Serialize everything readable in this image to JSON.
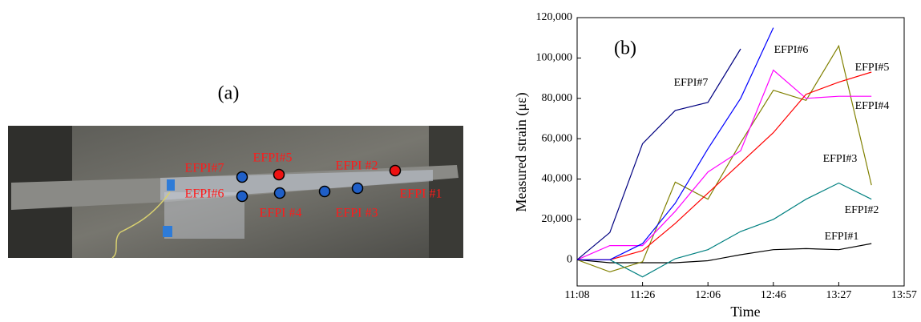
{
  "photo": {
    "label": "(a)",
    "sensors": [
      "EFPI#7",
      "EFPI#5",
      "EFPI #2",
      "EFPI#6",
      "EFPI #4",
      "EFPI #3",
      "EFPI #1"
    ]
  },
  "chart_data": {
    "type": "line",
    "title": "(b)",
    "x_label": "Time",
    "y_label": "Measured strain (με)",
    "categories": [
      "11:08",
      null,
      "11:26",
      null,
      "12:06",
      null,
      "12:46",
      null,
      "13:27",
      null,
      "13:57"
    ],
    "ylim": [
      -13000,
      120000
    ],
    "yticks": [
      0,
      {
        "value": 20000,
        "label": "20,000"
      },
      {
        "value": 40000,
        "label": "40,000"
      },
      {
        "value": 60000,
        "label": "60,000"
      },
      {
        "value": 80000,
        "label": "80,000"
      },
      {
        "value": 100000,
        "label": "100,000"
      },
      {
        "value": 120000,
        "label": "120,000"
      }
    ],
    "grid": false,
    "series": [
      {
        "name": "EFPI#1",
        "color": "#000000",
        "values": [
          0,
          -1500,
          -1500,
          -1500,
          -500,
          2500,
          5000,
          5500,
          5000,
          8000,
          null
        ]
      },
      {
        "name": "EFPI#2",
        "color": "#008080",
        "values": [
          0,
          0,
          -8500,
          500,
          5000,
          14000,
          20000,
          30000,
          38000,
          30000,
          null
        ]
      },
      {
        "name": "EFPI#3",
        "color": "#808000",
        "values": [
          0,
          -6000,
          -1000,
          38500,
          30000,
          58000,
          84000,
          79000,
          106000,
          37000,
          null
        ]
      },
      {
        "name": "EFPI#4",
        "color": "#ff00ff",
        "values": [
          0,
          7000,
          7000,
          24000,
          43500,
          54000,
          94000,
          80000,
          81000,
          81000,
          null
        ]
      },
      {
        "name": "EFPI#5",
        "color": "#ff0000",
        "values": [
          0,
          0,
          4500,
          18000,
          33000,
          48000,
          63000,
          82000,
          88000,
          93000,
          null
        ]
      },
      {
        "name": "EFPI#6",
        "color": "#0000ff",
        "values": [
          0,
          0,
          8000,
          28000,
          55000,
          80000,
          115000,
          null,
          null,
          null,
          null
        ]
      },
      {
        "name": "EFPI#7",
        "color": "#000080",
        "values": [
          0,
          13500,
          57500,
          74000,
          78000,
          104500,
          null,
          null,
          null,
          null,
          null
        ]
      }
    ]
  }
}
